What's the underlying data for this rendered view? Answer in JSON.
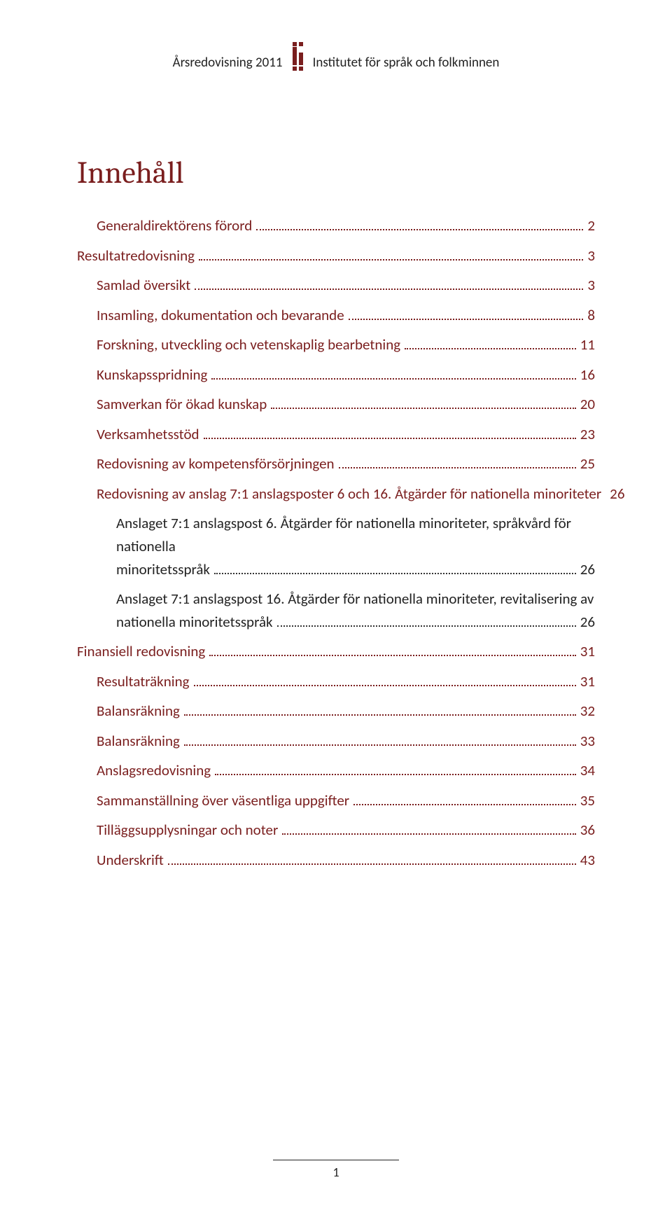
{
  "colors": {
    "brand": "#7a1e1e",
    "text": "#222222",
    "background": "#ffffff",
    "leader": "#333333"
  },
  "header": {
    "left": "Årsredovisning 2011",
    "right": "Institutet för språk och folkminnen"
  },
  "title": "Innehåll",
  "toc": [
    {
      "label": "Generaldirektörens förord",
      "page": "2",
      "level": 1,
      "red": true
    },
    {
      "label": "Resultatredovisning",
      "page": "3",
      "level": 0,
      "red": true
    },
    {
      "label": "Samlad översikt",
      "page": "3",
      "level": 1,
      "red": true
    },
    {
      "label": "Insamling, dokumentation och bevarande",
      "page": "8",
      "level": 1,
      "red": true
    },
    {
      "label": "Forskning, utveckling och vetenskaplig bearbetning",
      "page": "11",
      "level": 1,
      "red": true
    },
    {
      "label": "Kunskapsspridning",
      "page": "16",
      "level": 1,
      "red": true
    },
    {
      "label": "Samverkan för ökad kunskap",
      "page": "20",
      "level": 1,
      "red": true
    },
    {
      "label": "Verksamhetsstöd",
      "page": "23",
      "level": 1,
      "red": true
    },
    {
      "label": "Redovisning av kompetensförsörjningen",
      "page": "25",
      "level": 1,
      "red": true
    },
    {
      "label": "Redovisning av anslag 7:1 anslagsposter 6 och 16. Åtgärder för nationella minoriteter",
      "page": "26",
      "level": 1,
      "red": true
    },
    {
      "label_line1": "Anslaget 7:1 anslagspost 6. Åtgärder för nationella minoriteter, språkvård för nationella",
      "label_line2": "minoritetsspråk",
      "page": "26",
      "level": 2,
      "red": false,
      "wrap": true
    },
    {
      "label_line1": "Anslaget 7:1 anslagspost 16. Åtgärder för nationella minoriteter, revitalisering av",
      "label_line2": "nationella minoritetsspråk",
      "page": "26",
      "level": 2,
      "red": false,
      "wrap": true
    },
    {
      "label": "Finansiell redovisning",
      "page": "31",
      "level": 0,
      "red": true
    },
    {
      "label": "Resultaträkning",
      "page": "31",
      "level": 1,
      "red": true
    },
    {
      "label": "Balansräkning",
      "page": "32",
      "level": 1,
      "red": true
    },
    {
      "label": "Balansräkning",
      "page": "33",
      "level": 1,
      "red": true
    },
    {
      "label": "Anslagsredovisning",
      "page": "34",
      "level": 1,
      "red": true
    },
    {
      "label": "Sammanställning över väsentliga uppgifter",
      "page": "35",
      "level": 1,
      "red": true
    },
    {
      "label": "Tilläggsupplysningar och noter",
      "page": "36",
      "level": 1,
      "red": true
    },
    {
      "label": "Underskrift",
      "page": "43",
      "level": 1,
      "red": true
    }
  ],
  "footer": {
    "page_number": "1"
  }
}
